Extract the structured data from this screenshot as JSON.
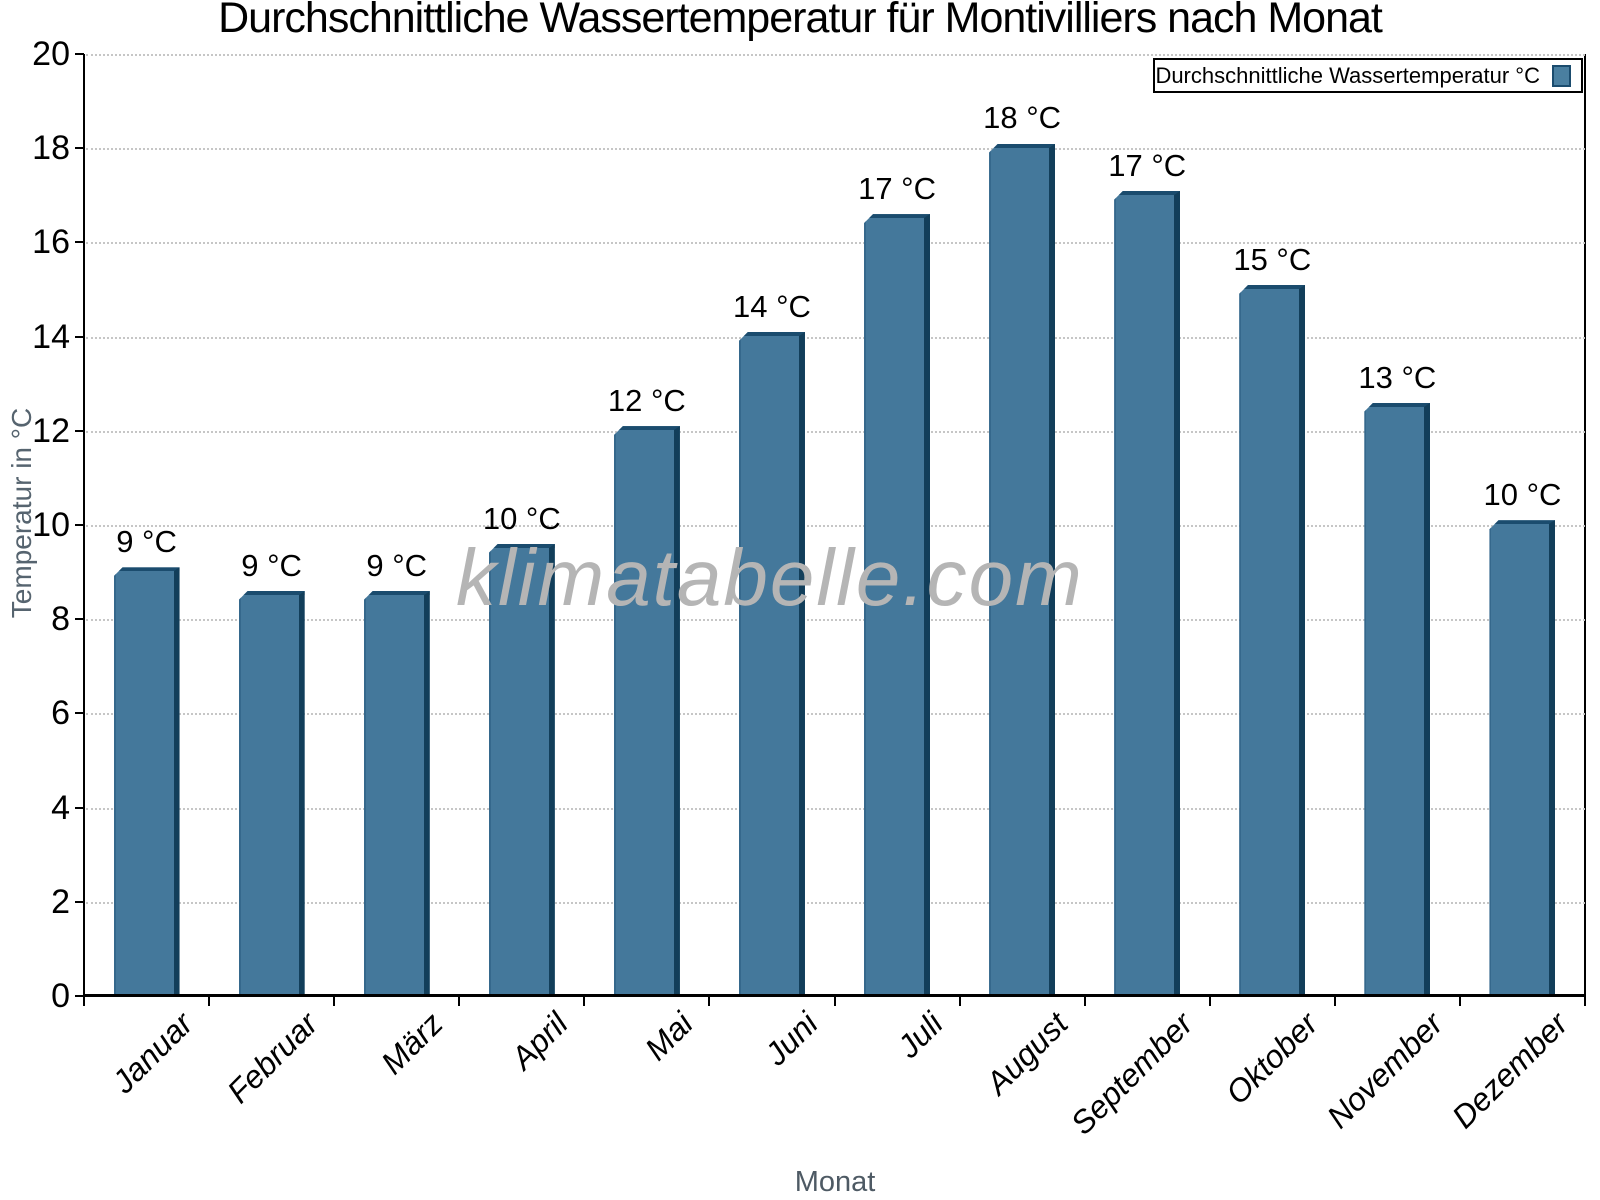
{
  "chart_data": {
    "type": "bar",
    "title": "Durchschnittliche Wassertemperatur für Montivilliers nach Monat",
    "xlabel": "Monat",
    "ylabel": "Temperatur in °C",
    "categories": [
      "Januar",
      "Februar",
      "März",
      "April",
      "Mai",
      "Juni",
      "Juli",
      "August",
      "September",
      "Oktober",
      "November",
      "Dezember"
    ],
    "values": [
      9.1,
      8.6,
      8.6,
      9.6,
      12.1,
      14.1,
      16.6,
      18.1,
      17.1,
      15.1,
      12.6,
      10.1
    ],
    "bar_labels": [
      "9 °C",
      "9 °C",
      "9 °C",
      "10 °C",
      "12 °C",
      "14 °C",
      "17 °C",
      "18 °C",
      "17 °C",
      "15 °C",
      "13 °C",
      "10 °C"
    ],
    "ylim": [
      0,
      20
    ],
    "ytick_step": 2,
    "grid": "horizontal-dotted",
    "legend_label": "Durchschnittliche Wassertemperatur °C",
    "legend_position": "top-right"
  },
  "watermark": {
    "text": "klimatabelle.com"
  },
  "colors": {
    "bar_face": "#44789b",
    "bar_side": "#123e5a",
    "bar_top": "#1b4c6e",
    "axis": "#000000",
    "grid": "#c6c6c6",
    "axis_title": "#56646f",
    "watermark": "#b5b5b5"
  }
}
